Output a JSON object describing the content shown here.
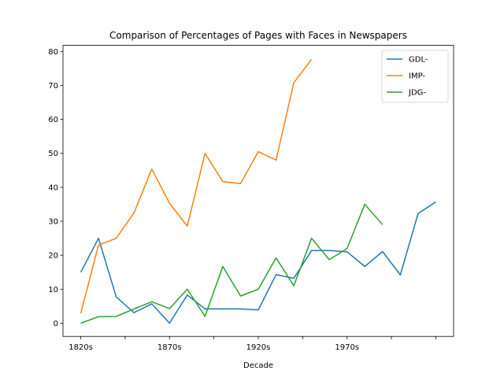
{
  "chart_data": {
    "type": "line",
    "title": "Comparison of Percentages of Pages with Faces in Newspapers",
    "xlabel": "Decade",
    "ylabel": "",
    "x": [
      "1820s",
      "1830s",
      "1840s",
      "1850s",
      "1860s",
      "1870s",
      "1880s",
      "1890s",
      "1900s",
      "1910s",
      "1920s",
      "1930s",
      "1940s",
      "1950s",
      "1960s",
      "1970s",
      "1980s",
      "1990s",
      "2000s",
      "2010s",
      "2020s"
    ],
    "x_tick_labels": [
      "1820s",
      "",
      "1870s",
      "",
      "1920s",
      "",
      "1970s",
      "",
      ""
    ],
    "x_tick_indices": [
      0,
      2.5,
      5,
      7.5,
      10,
      12.5,
      15,
      17.5,
      20
    ],
    "ylim": [
      -3.9,
      81.8
    ],
    "y_ticks": [
      0,
      10,
      20,
      30,
      40,
      50,
      60,
      70,
      80
    ],
    "grid": false,
    "legend_position": "top-right",
    "series": [
      {
        "name": "GDL-",
        "color": "#1f77b4",
        "values": [
          15,
          25,
          7.7,
          3.1,
          5.7,
          0,
          8.3,
          4.2,
          4.2,
          4.2,
          3.9,
          14.3,
          13.2,
          21.4,
          21.4,
          21,
          16.7,
          21.1,
          14.2,
          32.3,
          35.7
        ]
      },
      {
        "name": "IMP-",
        "color": "#ff7f0e",
        "values": [
          2.9,
          23,
          25,
          32.5,
          45.4,
          35.3,
          28.6,
          50,
          41.7,
          41.1,
          50.5,
          48,
          70.8,
          77.7,
          null,
          null,
          null,
          null,
          null,
          null,
          null
        ]
      },
      {
        "name": "JDG-",
        "color": "#2ca02c",
        "values": [
          0,
          1.9,
          2,
          4.2,
          6.3,
          4.3,
          10,
          2,
          16.7,
          8,
          10,
          19.2,
          11,
          25,
          18.7,
          22,
          35,
          29,
          null,
          null,
          null
        ]
      }
    ]
  }
}
